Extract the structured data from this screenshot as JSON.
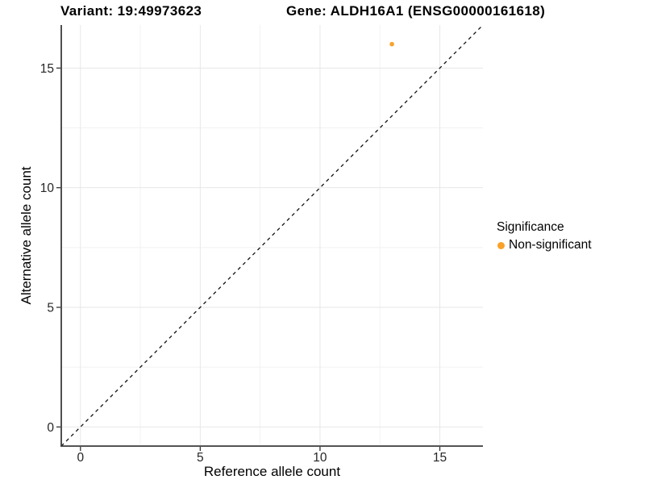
{
  "titles": {
    "variant": "Variant: 19:49973623",
    "gene": "Gene: ALDH16A1 (ENSG00000161618)"
  },
  "chart_data": {
    "type": "scatter",
    "title": "Variant: 19:49973623 | Gene: ALDH16A1 (ENSG00000161618)",
    "xlabel": "Reference allele count",
    "ylabel": "Alternative allele count",
    "xlim": [
      -0.8,
      16.8
    ],
    "ylim": [
      -0.8,
      16.8
    ],
    "x_ticks": [
      0,
      5,
      10,
      15
    ],
    "y_ticks": [
      0,
      5,
      10,
      15
    ],
    "x_minor_gridlines": [
      2.5,
      7.5,
      12.5
    ],
    "y_minor_gridlines": [
      2.5,
      7.5,
      12.5
    ],
    "grid": "major and minor gridlines, very light gray, white panel",
    "legend": {
      "position": "right",
      "title": "Significance",
      "items": [
        {
          "label": "Non-significant",
          "color": "#F9A22B",
          "marker": "circle"
        }
      ]
    },
    "series": [
      {
        "name": "Non-significant",
        "color": "#F9A22B",
        "points": [
          [
            13,
            16
          ]
        ]
      }
    ],
    "reference_line": {
      "kind": "identity y=x",
      "slope": 1,
      "intercept": 0,
      "style": "dashed",
      "color": "#111111"
    }
  }
}
